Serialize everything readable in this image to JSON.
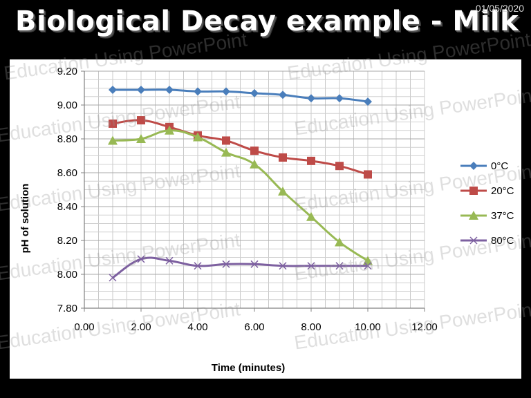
{
  "slide": {
    "title": "Biological Decay example - Milk",
    "date": "01/05/2020",
    "watermark": "Education Using PowerPoint"
  },
  "chart_data": {
    "type": "line",
    "title": "",
    "xlabel": "Time (minutes)",
    "ylabel": "pH of solution",
    "xlim": [
      0,
      12
    ],
    "ylim": [
      7.8,
      9.2
    ],
    "x_ticks": [
      "0.00",
      "2.00",
      "4.00",
      "6.00",
      "8.00",
      "10.00",
      "12.00"
    ],
    "y_ticks": [
      "7.80",
      "8.00",
      "8.20",
      "8.40",
      "8.60",
      "8.80",
      "9.00",
      "9.20"
    ],
    "grid": true,
    "legend_position": "right",
    "x": [
      1,
      2,
      3,
      4,
      5,
      6,
      7,
      8,
      9,
      10
    ],
    "series": [
      {
        "name": "0°C",
        "color": "#4a7ebb",
        "marker": "diamond",
        "values": [
          9.09,
          9.09,
          9.09,
          9.08,
          9.08,
          9.07,
          9.06,
          9.04,
          9.04,
          9.02
        ]
      },
      {
        "name": "20°C",
        "color": "#be4b48",
        "marker": "square",
        "values": [
          8.89,
          8.91,
          8.87,
          8.82,
          8.79,
          8.73,
          8.69,
          8.67,
          8.64,
          8.59
        ]
      },
      {
        "name": "37°C",
        "color": "#98b954",
        "marker": "triangle",
        "values": [
          8.79,
          8.8,
          8.85,
          8.81,
          8.72,
          8.65,
          8.49,
          8.34,
          8.19,
          8.08
        ]
      },
      {
        "name": "80°C",
        "color": "#7d60a0",
        "marker": "x",
        "values": [
          7.98,
          8.09,
          8.08,
          8.05,
          8.06,
          8.06,
          8.05,
          8.05,
          8.05,
          8.05
        ]
      }
    ]
  }
}
